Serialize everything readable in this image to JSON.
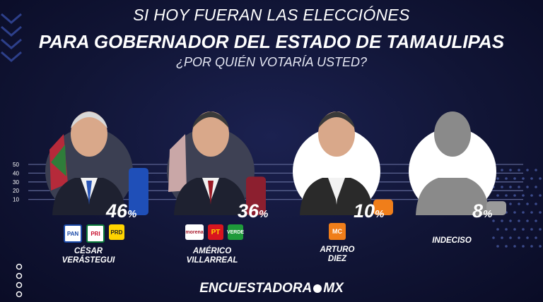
{
  "title": {
    "line1": "SI HOY FUERAN LAS ELECCIÓNES",
    "line2": "PARA GOBERNADOR DEL ESTADO DE  TAMAULIPAS",
    "line3": "¿POR QUIÉN VOTARÍA USTED?"
  },
  "chart_data": {
    "type": "bar",
    "categories": [
      "CÉSAR VERÁSTEGUI",
      "AMÉRICO VILLARREAL",
      "ARTURO DIEZ",
      "INDECISO"
    ],
    "values": [
      46,
      36,
      10,
      8
    ],
    "value_labels": [
      "46",
      "36",
      "10",
      "8"
    ],
    "unit": "%",
    "yticks": [
      10,
      20,
      30,
      40,
      50
    ],
    "ylim": [
      0,
      50
    ],
    "grid": true,
    "colors": [
      "#1f4fb8",
      "#8c1f2f",
      "#f07e1a",
      "#9a9a9a"
    ]
  },
  "candidates": [
    {
      "name_line1": "CÉSAR",
      "name_line2": "VERÁSTEGUI",
      "parties": [
        "PAN",
        "PRI",
        "PRD"
      ]
    },
    {
      "name_line1": "AMÉRICO",
      "name_line2": "VILLARREAL",
      "parties": [
        "morena",
        "PT",
        "VERDE"
      ]
    },
    {
      "name_line1": "ARTURO",
      "name_line2": "DIEZ",
      "parties": [
        "MC"
      ]
    },
    {
      "name_line1": "INDECISO",
      "name_line2": "",
      "parties": []
    }
  ],
  "brand": "ENCUESTADORA",
  "brand_suffix": "MX",
  "icons": [
    "candidate-photo-icon",
    "party-logo-icon",
    "chevron-icon",
    "dot-grid-icon"
  ]
}
